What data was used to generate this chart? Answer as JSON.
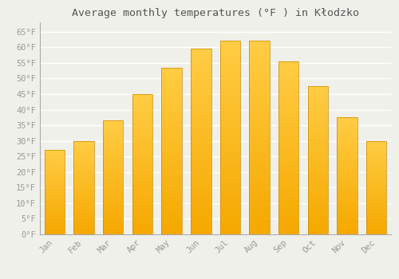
{
  "title": "Average monthly temperatures (°F ) in Kłodzko",
  "months": [
    "Jan",
    "Feb",
    "Mar",
    "Apr",
    "May",
    "Jun",
    "Jul",
    "Aug",
    "Sep",
    "Oct",
    "Nov",
    "Dec"
  ],
  "values": [
    27,
    30,
    36.5,
    45,
    53.5,
    59.5,
    62,
    62,
    55.5,
    47.5,
    37.5,
    30
  ],
  "bar_color_bottom": "#F5A800",
  "bar_color_top": "#FFCC44",
  "bar_edge_color": "#CC8800",
  "background_color": "#f0f0eb",
  "grid_color": "#ffffff",
  "text_color": "#999999",
  "title_color": "#555555",
  "ylim_min": 0,
  "ylim_max": 68,
  "yticks": [
    0,
    5,
    10,
    15,
    20,
    25,
    30,
    35,
    40,
    45,
    50,
    55,
    60,
    65
  ],
  "title_fontsize": 9.5,
  "tick_fontsize": 7.5,
  "bar_width": 0.7
}
